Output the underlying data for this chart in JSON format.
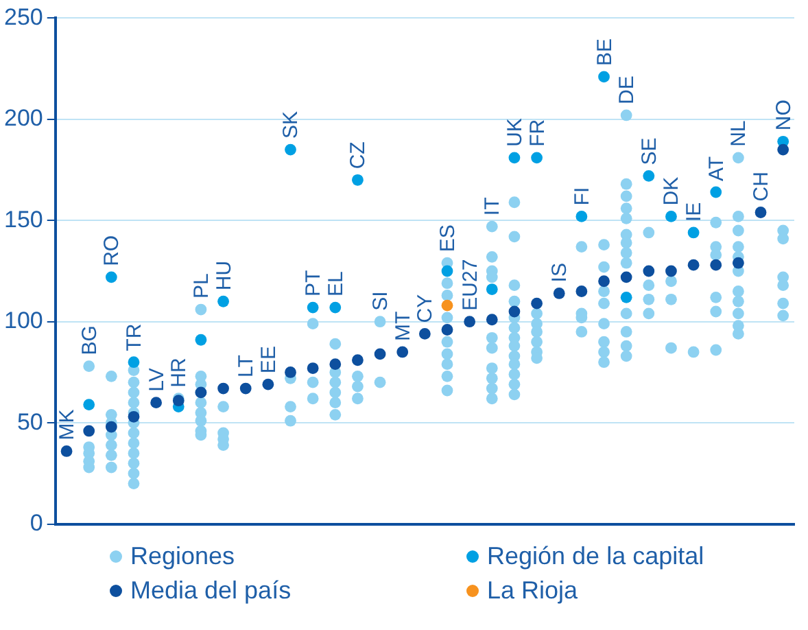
{
  "chart_data": {
    "type": "scatter",
    "categories": [
      "MK",
      "BG",
      "RO",
      "TR",
      "LV",
      "HR",
      "PL",
      "HU",
      "LT",
      "EE",
      "SK",
      "PT",
      "EL",
      "CZ",
      "SI",
      "MT",
      "CY",
      "ES",
      "EU27",
      "IT",
      "UK",
      "FR",
      "IS",
      "FI",
      "BE",
      "DE",
      "SE",
      "DK",
      "IE",
      "AT",
      "NL",
      "CH",
      "NO"
    ],
    "ylim": [
      0,
      250
    ],
    "yticks": [
      0,
      50,
      100,
      150,
      200,
      250
    ],
    "grid": "y",
    "legend": "bottom",
    "marker": "circle",
    "series": [
      {
        "name": "Regiones",
        "color": "#8dd1f1",
        "x": [
          "BG",
          "BG",
          "BG",
          "BG",
          "BG",
          "RO",
          "RO",
          "RO",
          "RO",
          "RO",
          "RO",
          "RO",
          "TR",
          "TR",
          "TR",
          "TR",
          "TR",
          "TR",
          "TR",
          "TR",
          "TR",
          "TR",
          "TR",
          "TR",
          "HR",
          "PL",
          "PL",
          "PL",
          "PL",
          "PL",
          "PL",
          "PL",
          "PL",
          "PL",
          "HU",
          "HU",
          "HU",
          "HU",
          "SK",
          "SK",
          "SK",
          "PT",
          "PT",
          "PT",
          "EL",
          "EL",
          "EL",
          "EL",
          "EL",
          "EL",
          "CZ",
          "CZ",
          "CZ",
          "SI",
          "SI",
          "ES",
          "ES",
          "ES",
          "ES",
          "ES",
          "ES",
          "ES",
          "ES",
          "ES",
          "IT",
          "IT",
          "IT",
          "IT",
          "IT",
          "IT",
          "IT",
          "IT",
          "IT",
          "IT",
          "UK",
          "UK",
          "UK",
          "UK",
          "UK",
          "UK",
          "UK",
          "UK",
          "UK",
          "UK",
          "UK",
          "UK",
          "UK",
          "FR",
          "FR",
          "FR",
          "FR",
          "FR",
          "FR",
          "FI",
          "FI",
          "FI",
          "FI",
          "BE",
          "BE",
          "BE",
          "BE",
          "BE",
          "BE",
          "BE",
          "BE",
          "DE",
          "DE",
          "DE",
          "DE",
          "DE",
          "DE",
          "DE",
          "DE",
          "DE",
          "DE",
          "DE",
          "DE",
          "DE",
          "SE",
          "SE",
          "SE",
          "SE",
          "DK",
          "DK",
          "DK",
          "IE",
          "AT",
          "AT",
          "AT",
          "AT",
          "AT",
          "AT",
          "NL",
          "NL",
          "NL",
          "NL",
          "NL",
          "NL",
          "NL",
          "NL",
          "NL",
          "NL",
          "NL",
          "NO",
          "NO",
          "NO",
          "NO",
          "NO",
          "NO"
        ],
        "values": [
          78,
          38,
          35,
          31,
          28,
          73,
          54,
          50,
          44,
          39,
          34,
          28,
          76,
          70,
          65,
          60,
          55,
          50,
          45,
          40,
          35,
          30,
          25,
          20,
          62,
          106,
          73,
          69,
          65,
          60,
          55,
          51,
          46,
          44,
          58,
          45,
          42,
          39,
          72,
          58,
          51,
          99,
          70,
          62,
          89,
          75,
          70,
          65,
          60,
          54,
          73,
          68,
          62,
          100,
          70,
          129,
          119,
          113,
          102,
          90,
          84,
          79,
          73,
          66,
          147,
          132,
          125,
          122,
          92,
          87,
          77,
          72,
          67,
          62,
          159,
          142,
          118,
          110,
          102,
          97,
          92,
          88,
          83,
          79,
          74,
          69,
          64,
          104,
          99,
          95,
          90,
          85,
          82,
          137,
          104,
          102,
          95,
          138,
          127,
          115,
          109,
          99,
          90,
          85,
          80,
          202,
          168,
          162,
          156,
          151,
          143,
          139,
          134,
          129,
          104,
          95,
          88,
          83,
          144,
          118,
          111,
          104,
          120,
          111,
          87,
          85,
          149,
          137,
          133,
          112,
          105,
          86,
          181,
          152,
          145,
          137,
          132,
          125,
          115,
          110,
          104,
          98,
          94,
          145,
          141,
          122,
          118,
          109,
          103
        ]
      },
      {
        "name": "Región de la capital",
        "color": "#00a0e3",
        "x": [
          "BG",
          "RO",
          "TR",
          "HR",
          "PL",
          "HU",
          "SK",
          "PT",
          "EL",
          "CZ",
          "ES",
          "IT",
          "UK",
          "FR",
          "FI",
          "BE",
          "DE",
          "SE",
          "DK",
          "IE",
          "AT",
          "NO"
        ],
        "values": [
          59,
          122,
          80,
          58,
          91,
          110,
          185,
          107,
          107,
          170,
          125,
          116,
          181,
          181,
          152,
          221,
          112,
          172,
          152,
          144,
          164,
          189
        ]
      },
      {
        "name": "Media del país",
        "color": "#0d4f9e",
        "x": [
          "MK",
          "BG",
          "RO",
          "TR",
          "LV",
          "HR",
          "PL",
          "HU",
          "LT",
          "EE",
          "SK",
          "PT",
          "EL",
          "CZ",
          "SI",
          "MT",
          "CY",
          "ES",
          "EU27",
          "IT",
          "UK",
          "FR",
          "IS",
          "FI",
          "BE",
          "DE",
          "SE",
          "DK",
          "IE",
          "AT",
          "NL",
          "CH",
          "NO"
        ],
        "values": [
          36,
          46,
          48,
          53,
          60,
          61,
          65,
          67,
          67,
          69,
          75,
          77,
          79,
          81,
          84,
          85,
          94,
          96,
          100,
          101,
          105,
          109,
          114,
          115,
          120,
          122,
          125,
          125,
          128,
          128,
          129,
          154,
          185
        ]
      },
      {
        "name": "La Rioja",
        "color": "#f7921e",
        "x": [
          "ES"
        ],
        "values": [
          108
        ]
      }
    ]
  }
}
